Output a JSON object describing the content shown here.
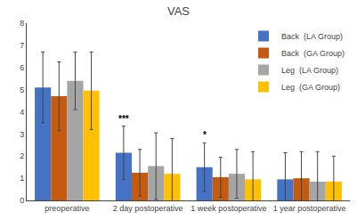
{
  "chart_data": {
    "type": "bar",
    "title": "VAS",
    "categories": [
      "preoperative",
      "2 day postoperative",
      "1 week postoperative",
      "1 year postoperative"
    ],
    "series": [
      {
        "name": "Back  (LA Group)",
        "color": "#4472c4",
        "values": [
          5.1,
          2.15,
          1.5,
          0.95
        ],
        "errors": [
          1.6,
          1.2,
          1.1,
          1.2
        ]
      },
      {
        "name": "Back  (GA Group)",
        "color": "#c55a11",
        "values": [
          4.7,
          1.25,
          1.05,
          1.0
        ],
        "errors": [
          1.55,
          1.05,
          0.9,
          1.2
        ]
      },
      {
        "name": "Leg  (LA Group)",
        "color": "#a5a5a5",
        "values": [
          5.4,
          1.55,
          1.2,
          0.85
        ],
        "errors": [
          1.3,
          1.5,
          1.1,
          1.35
        ]
      },
      {
        "name": "Leg  (GA Group)",
        "color": "#ffc000",
        "values": [
          4.95,
          1.2,
          0.95,
          0.85
        ],
        "errors": [
          1.75,
          1.6,
          1.25,
          1.15
        ]
      }
    ],
    "ylim": [
      0,
      8
    ],
    "yticks": [
      0,
      1,
      2,
      3,
      4,
      5,
      6,
      7,
      8
    ],
    "grid": false,
    "legend": "upper right",
    "annotations": [
      {
        "text": "***",
        "category": "2 day postoperative",
        "series": "Back  (LA Group)"
      },
      {
        "text": "*",
        "category": "1 week postoperative",
        "series": "Back  (LA Group)"
      }
    ]
  }
}
